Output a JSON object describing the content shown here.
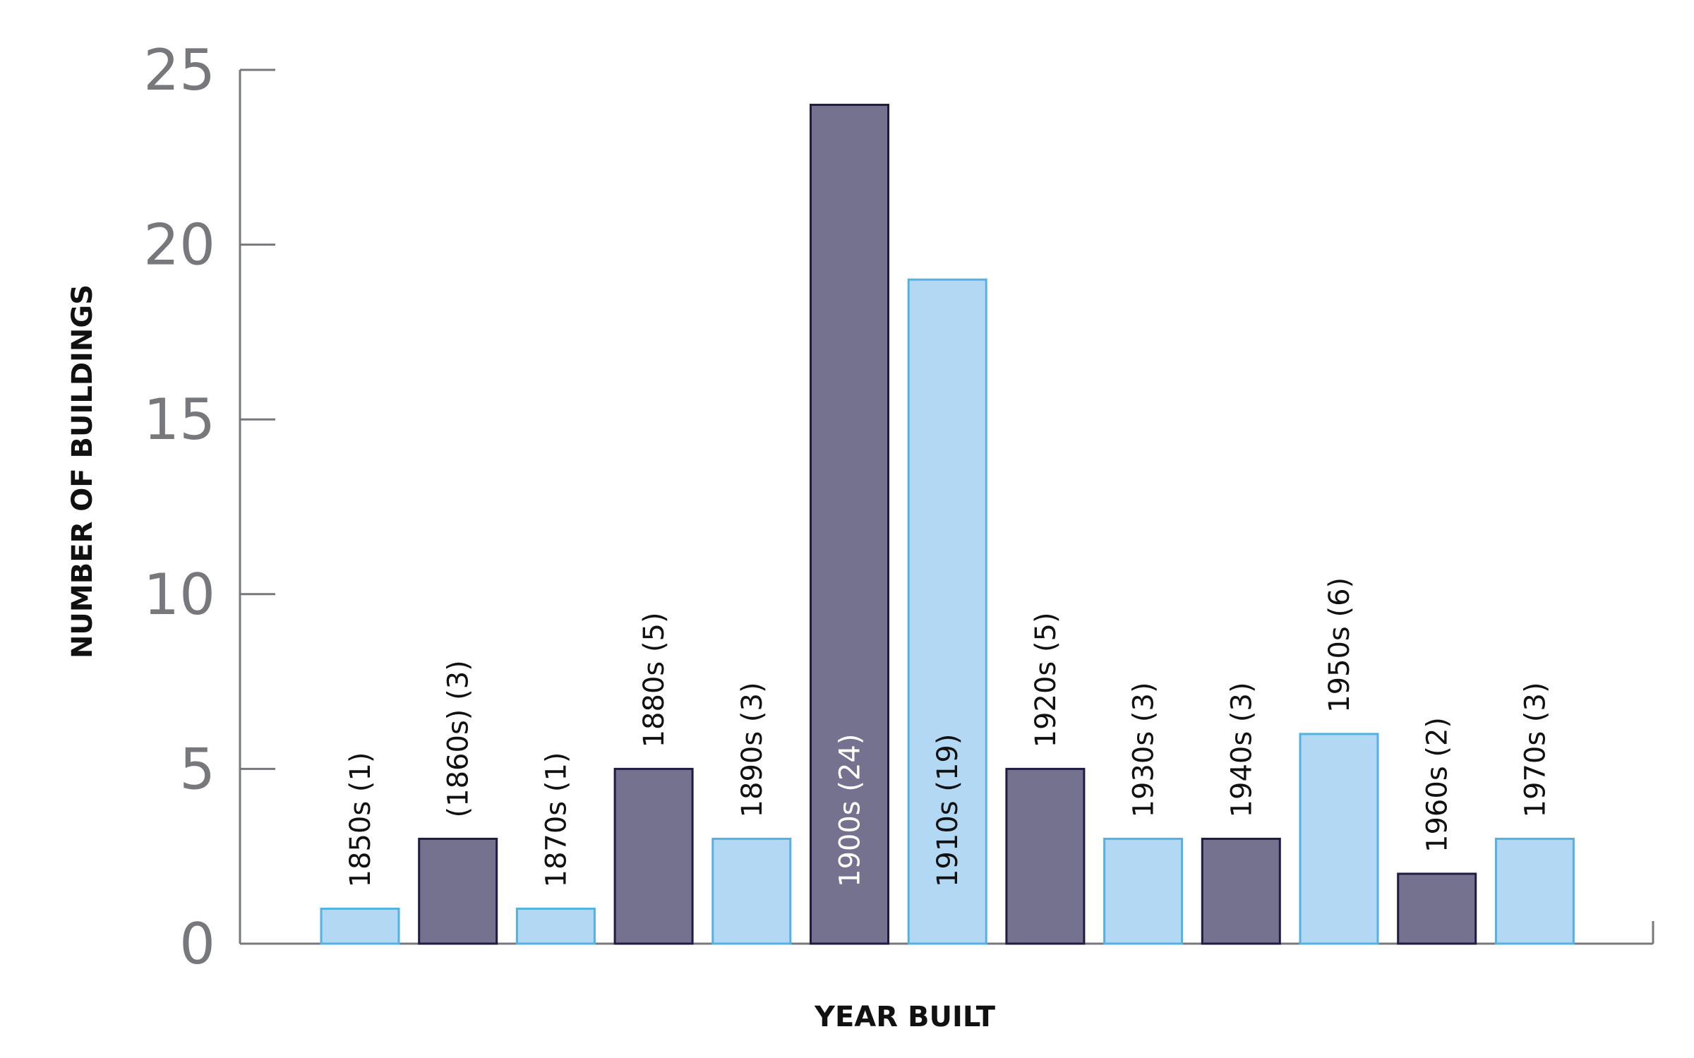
{
  "chart_data": {
    "type": "bar",
    "title": "",
    "xlabel": "YEAR BUILT",
    "ylabel": "NUMBER OF BUILDINGS",
    "ylim": [
      0,
      25
    ],
    "yticks": [
      "0",
      "5",
      "10",
      "15",
      "20",
      "25"
    ],
    "grid": false,
    "categories": [
      "1850s",
      "1860s",
      "1870s",
      "1880s",
      "1890s",
      "1900s",
      "1910s",
      "1920s",
      "1930s",
      "1940s",
      "1950s",
      "1960s",
      "1970s"
    ],
    "values": [
      1,
      3,
      1,
      5,
      3,
      24,
      19,
      5,
      3,
      3,
      6,
      2,
      3
    ],
    "data_labels": [
      "1850s (1)",
      "(1860s) (3)",
      "1870s (1)",
      "1880s (5)",
      "1890s (3)",
      "1900s (24)",
      "1910s (19)",
      "1920s (5)",
      "1930s (3)",
      "1940s (3)",
      "1950s (6)",
      "1960s (2)",
      "1970s (3)"
    ],
    "bar_styles": [
      "light",
      "dark",
      "light",
      "dark",
      "light",
      "dark",
      "light",
      "dark",
      "light",
      "dark",
      "light",
      "dark",
      "light"
    ],
    "colors": {
      "light_fill": "#b2d8f3",
      "light_stroke": "#55b1e1",
      "dark_fill": "#74728f",
      "dark_stroke": "#1e1c43",
      "axis": "#77787b",
      "label_on_light": "#111111",
      "label_on_dark": "#ffffff"
    }
  }
}
